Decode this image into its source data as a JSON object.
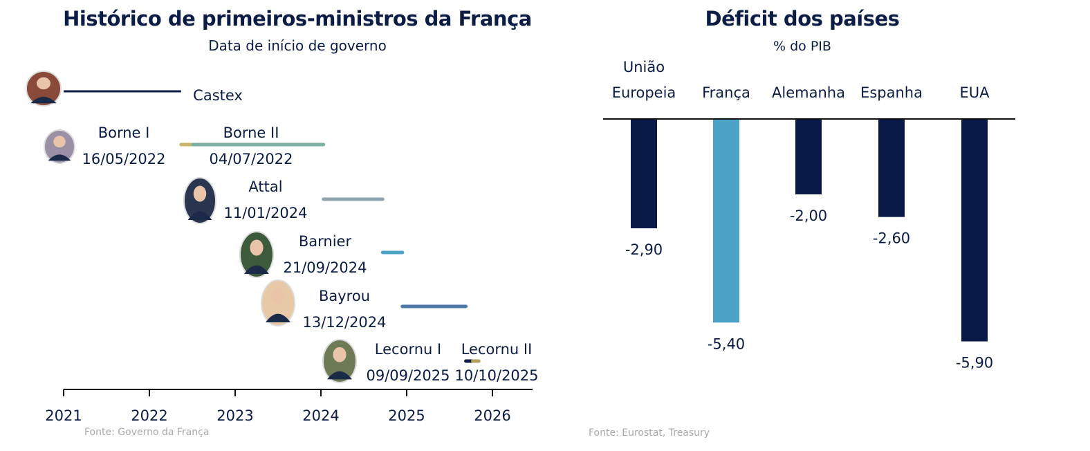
{
  "chart_data": [
    {
      "type": "timeline",
      "title": "Histórico de primeiros-ministros da França",
      "subtitle": "Data de início de governo",
      "source": "Fonte: Governo da França",
      "xlim": [
        2021,
        2026.5
      ],
      "ticks": [
        "2021",
        "2022",
        "2023",
        "2024",
        "2025",
        "2026"
      ],
      "tick_values": [
        2021,
        2022,
        2023,
        2024,
        2025,
        2026
      ],
      "series": [
        {
          "name": "Castex",
          "date": "",
          "start": 2021.0,
          "end": 2022.37,
          "color": "#0b1c45",
          "photo_color": "#8a4a3a"
        },
        {
          "name": "Borne I",
          "date": "16/05/2022",
          "start": 2022.37,
          "end": 2022.51,
          "color": "#c8b46a",
          "photo_color": "#9b8fa6"
        },
        {
          "name": "Borne II",
          "date": "04/07/2022",
          "start": 2022.51,
          "end": 2024.03,
          "color": "#7fb0a6",
          "photo_color": "#9b8fa6"
        },
        {
          "name": "Attal",
          "date": "11/01/2024",
          "start": 2024.03,
          "end": 2024.72,
          "color": "#8ea5ad",
          "photo_color": "#2a3550"
        },
        {
          "name": "Barnier",
          "date": "21/09/2024",
          "start": 2024.72,
          "end": 2024.95,
          "color": "#4ba3c7",
          "photo_color": "#3d5a3a"
        },
        {
          "name": "Bayrou",
          "date": "13/12/2024",
          "start": 2024.95,
          "end": 2025.69,
          "color": "#4d76aa",
          "photo_color": "#e7c9a8"
        },
        {
          "name": "Lecornu I",
          "date": "09/09/2025",
          "start": 2025.69,
          "end": 2025.77,
          "color": "#0b1c45",
          "photo_color": "#6d7a55"
        },
        {
          "name": "Lecornu II",
          "date": "10/10/2025",
          "start": 2025.77,
          "end": 2025.84,
          "color": "#b59d5c",
          "photo_color": ""
        }
      ]
    },
    {
      "type": "bar",
      "title": "Déficit dos países",
      "subtitle": "% do PIB",
      "source": "Fonte: Eurostat,  Treasury",
      "categories": [
        "União Europeia",
        "França",
        "Alemanha",
        "Espanha",
        "EUA"
      ],
      "category_lines": [
        [
          "União",
          "Europeia"
        ],
        [
          "França"
        ],
        [
          "Alemanha"
        ],
        [
          "Espanha"
        ],
        [
          "EUA"
        ]
      ],
      "values": [
        -2.9,
        -5.4,
        -2.0,
        -2.6,
        -5.9
      ],
      "labels": [
        "-2,90",
        "-5,40",
        "-2,00",
        "-2,60",
        "-5,90"
      ],
      "colors": [
        "#0a1a47",
        "#4ba3c7",
        "#0a1a47",
        "#0a1a47",
        "#0a1a47"
      ],
      "ylim": [
        -6.2,
        0
      ],
      "xlabel": "",
      "ylabel": ""
    }
  ]
}
